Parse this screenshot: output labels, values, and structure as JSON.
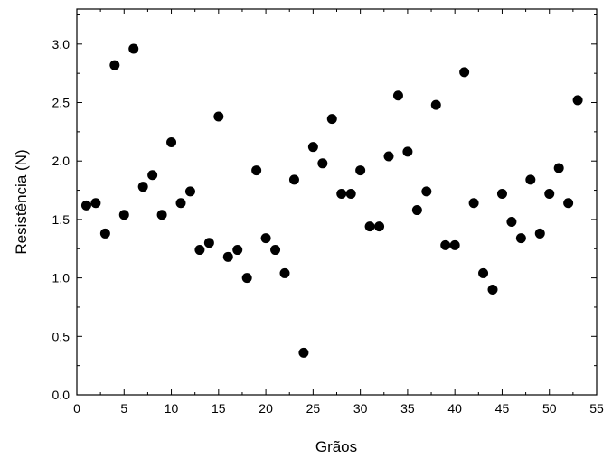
{
  "chart_data": {
    "type": "scatter",
    "title": "",
    "xlabel": "Grãos",
    "ylabel": "Resistência (N)",
    "xlim": [
      0,
      55
    ],
    "ylim": [
      0,
      3.3
    ],
    "x_ticks": [
      "0",
      "5",
      "10",
      "15",
      "20",
      "25",
      "30",
      "35",
      "40",
      "45",
      "50",
      "55"
    ],
    "y_ticks": [
      "0.0",
      "0.5",
      "1.0",
      "1.5",
      "2.0",
      "2.5",
      "3.0"
    ],
    "grid": false,
    "legend": "none",
    "marker_color": "#000000",
    "points": [
      {
        "x": 1,
        "y": 1.62
      },
      {
        "x": 2,
        "y": 1.64
      },
      {
        "x": 3,
        "y": 1.38
      },
      {
        "x": 4,
        "y": 2.82
      },
      {
        "x": 5,
        "y": 1.54
      },
      {
        "x": 6,
        "y": 2.96
      },
      {
        "x": 7,
        "y": 1.78
      },
      {
        "x": 8,
        "y": 1.88
      },
      {
        "x": 9,
        "y": 1.54
      },
      {
        "x": 10,
        "y": 2.16
      },
      {
        "x": 11,
        "y": 1.64
      },
      {
        "x": 12,
        "y": 1.74
      },
      {
        "x": 13,
        "y": 1.24
      },
      {
        "x": 14,
        "y": 1.3
      },
      {
        "x": 15,
        "y": 2.38
      },
      {
        "x": 16,
        "y": 1.18
      },
      {
        "x": 17,
        "y": 1.24
      },
      {
        "x": 18,
        "y": 1.0
      },
      {
        "x": 19,
        "y": 1.92
      },
      {
        "x": 20,
        "y": 1.34
      },
      {
        "x": 21,
        "y": 1.24
      },
      {
        "x": 22,
        "y": 1.04
      },
      {
        "x": 23,
        "y": 1.84
      },
      {
        "x": 24,
        "y": 0.36
      },
      {
        "x": 25,
        "y": 2.12
      },
      {
        "x": 26,
        "y": 1.98
      },
      {
        "x": 27,
        "y": 2.36
      },
      {
        "x": 28,
        "y": 1.72
      },
      {
        "x": 29,
        "y": 1.72
      },
      {
        "x": 30,
        "y": 1.92
      },
      {
        "x": 31,
        "y": 1.44
      },
      {
        "x": 32,
        "y": 1.44
      },
      {
        "x": 33,
        "y": 2.04
      },
      {
        "x": 34,
        "y": 2.56
      },
      {
        "x": 35,
        "y": 2.08
      },
      {
        "x": 36,
        "y": 1.58
      },
      {
        "x": 37,
        "y": 1.74
      },
      {
        "x": 38,
        "y": 2.48
      },
      {
        "x": 39,
        "y": 1.28
      },
      {
        "x": 40,
        "y": 1.28
      },
      {
        "x": 41,
        "y": 2.76
      },
      {
        "x": 42,
        "y": 1.64
      },
      {
        "x": 43,
        "y": 1.04
      },
      {
        "x": 44,
        "y": 0.9
      },
      {
        "x": 45,
        "y": 1.72
      },
      {
        "x": 46,
        "y": 1.48
      },
      {
        "x": 47,
        "y": 1.34
      },
      {
        "x": 48,
        "y": 1.84
      },
      {
        "x": 49,
        "y": 1.38
      },
      {
        "x": 50,
        "y": 1.72
      },
      {
        "x": 51,
        "y": 1.94
      },
      {
        "x": 52,
        "y": 1.64
      },
      {
        "x": 53,
        "y": 2.52
      }
    ]
  }
}
